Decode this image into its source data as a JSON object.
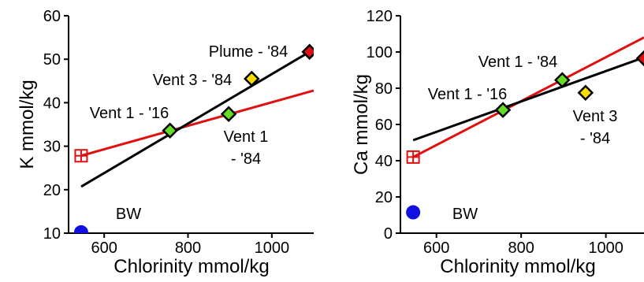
{
  "chart_data": [
    {
      "type": "scatter",
      "xlabel": "Chlorinity mmol/kg",
      "ylabel": "K mmol/kg",
      "xlim": [
        515,
        1100
      ],
      "ylim": [
        10,
        60
      ],
      "xticks": [
        600,
        800,
        1000
      ],
      "yticks": [
        10,
        20,
        30,
        40,
        50,
        60
      ],
      "grid": false,
      "points": [
        {
          "label": "BW",
          "x": 545,
          "y": 10.2,
          "marker": "circle",
          "color": "#1010e0"
        },
        {
          "label": "",
          "x": 545,
          "y": 27.8,
          "marker": "crossed-square",
          "color": "#e01010"
        },
        {
          "label": "Vent 1 - '16",
          "x": 757,
          "y": 33.6,
          "marker": "diamond",
          "color": "#66dd22"
        },
        {
          "label": "Vent 1 - '84",
          "x": 897,
          "y": 37.4,
          "marker": "diamond",
          "color": "#66dd22"
        },
        {
          "label": "Vent 3 - '84",
          "x": 952,
          "y": 45.5,
          "marker": "diamond",
          "color": "#ffdd00"
        },
        {
          "label": "Plume - '84",
          "x": 1090,
          "y": 51.7,
          "marker": "diamond",
          "color": "#dd1111"
        }
      ],
      "lines": [
        {
          "color": "#e01010",
          "x": [
            545,
            1100
          ],
          "y": [
            27.8,
            42.8
          ]
        },
        {
          "color": "#000000",
          "x": [
            545,
            1090
          ],
          "y": [
            20.7,
            51.7
          ]
        }
      ]
    },
    {
      "type": "scatter",
      "xlabel": "Chlorinity mmol/kg",
      "ylabel": "Ca mmol/kg",
      "xlim": [
        515,
        1090
      ],
      "ylim": [
        0,
        120
      ],
      "xticks": [
        600,
        800,
        1000
      ],
      "yticks": [
        0,
        20,
        40,
        60,
        80,
        100,
        120
      ],
      "grid": false,
      "points": [
        {
          "label": "BW",
          "x": 545,
          "y": 11.5,
          "marker": "circle",
          "color": "#1010e0"
        },
        {
          "label": "",
          "x": 545,
          "y": 42,
          "marker": "crossed-square",
          "color": "#e01010"
        },
        {
          "label": "Vent 1 - '16",
          "x": 757,
          "y": 68,
          "marker": "diamond",
          "color": "#66dd22"
        },
        {
          "label": "Vent 1 - '84",
          "x": 897,
          "y": 84.5,
          "marker": "diamond",
          "color": "#66dd22"
        },
        {
          "label": "Vent 3 - '84",
          "x": 952,
          "y": 77.5,
          "marker": "diamond",
          "color": "#ffdd00"
        },
        {
          "label": "",
          "x": 1090,
          "y": 96.5,
          "marker": "diamond",
          "color": "#dd1111"
        }
      ],
      "lines": [
        {
          "color": "#e01010",
          "x": [
            545,
            1090
          ],
          "y": [
            42,
            108
          ]
        },
        {
          "color": "#000000",
          "x": [
            545,
            1090
          ],
          "y": [
            51.3,
            97
          ]
        }
      ]
    }
  ]
}
